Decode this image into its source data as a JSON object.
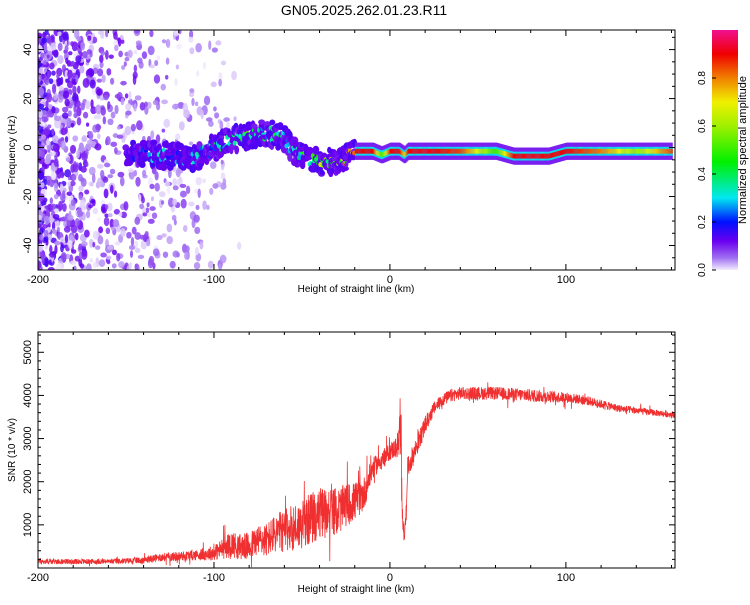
{
  "title": "GN05.2025.262.01.23.R11",
  "chart_data": [
    {
      "type": "heatmap",
      "title": "GN05.2025.262.01.23.R11",
      "xlabel": "Height of straight line (km)",
      "ylabel": "Frequency (Hz)",
      "xlim": [
        -200,
        162
      ],
      "ylim": [
        -50,
        48
      ],
      "xticks": [
        "-200",
        "-100",
        "0",
        "100"
      ],
      "xtick_values": [
        -200,
        -100,
        0,
        100
      ],
      "yticks": [
        "40",
        "20",
        "0",
        "-20",
        "-40"
      ],
      "ytick_values": [
        40,
        20,
        0,
        -20,
        -40
      ],
      "colorbar": {
        "label": "Normalized spectral amplitude",
        "range": [
          0,
          1
        ],
        "ticks": [
          "0.0",
          "0.2",
          "0.4",
          "0.6",
          "0.8"
        ],
        "tick_values": [
          0,
          0.2,
          0.4,
          0.6,
          0.8
        ]
      },
      "ridge": {
        "height": [
          -150,
          -140,
          -130,
          -120,
          -110,
          -100,
          -90,
          -80,
          -70,
          -60,
          -55,
          -50,
          -45,
          -40,
          -35,
          -30,
          -25,
          -20,
          -10,
          -5,
          0,
          5,
          8,
          10,
          20,
          40,
          60,
          70,
          80,
          90,
          100,
          120,
          140,
          160
        ],
        "frequency": [
          -3,
          -3,
          -3,
          -4,
          -4,
          0,
          3,
          5,
          6,
          4,
          -1,
          -3,
          -5,
          -6,
          -6,
          -5,
          -4,
          -1.5,
          -1.5,
          -3,
          -1.5,
          -1.5,
          -3,
          -1.5,
          -1.5,
          -1.5,
          -1.5,
          -3.5,
          -3.5,
          -3.5,
          -1.5,
          -1.5,
          -1.5,
          -1.5
        ],
        "amplitude": [
          0.15,
          0.25,
          0.3,
          0.25,
          0.3,
          0.35,
          0.4,
          0.45,
          0.4,
          0.35,
          0.4,
          0.45,
          0.5,
          0.55,
          0.6,
          0.65,
          0.75,
          0.9,
          0.9,
          0.5,
          0.9,
          0.9,
          0.7,
          0.9,
          0.92,
          0.85,
          0.5,
          0.9,
          0.92,
          0.9,
          0.9,
          0.8,
          0.6,
          0.85
        ]
      },
      "noise_region": {
        "height_range": [
          -200,
          -105
        ],
        "amplitude_max": 0.12
      }
    },
    {
      "type": "line",
      "xlabel": "Height of straight line (km)",
      "ylabel": "SNR (10 * v/v)",
      "xlim": [
        -200,
        162
      ],
      "ylim": [
        0,
        5470
      ],
      "xticks": [
        "-200",
        "-100",
        "0",
        "100"
      ],
      "xtick_values": [
        -200,
        -100,
        0,
        100
      ],
      "yticks": [
        "1000",
        "2000",
        "3000",
        "4000",
        "5000"
      ],
      "ytick_values": [
        1000,
        2000,
        3000,
        4000,
        5000
      ],
      "color": "#f03030",
      "series": [
        {
          "name": "SNR",
          "x": [
            -200,
            -180,
            -160,
            -140,
            -130,
            -120,
            -110,
            -100,
            -95,
            -90,
            -85,
            -80,
            -75,
            -70,
            -65,
            -60,
            -55,
            -50,
            -45,
            -40,
            -35,
            -30,
            -25,
            -20,
            -15,
            -10,
            -5,
            0,
            4,
            6,
            7,
            8,
            9,
            10,
            12,
            15,
            20,
            25,
            30,
            35,
            40,
            60,
            80,
            100,
            110,
            120,
            130,
            140,
            150,
            162
          ],
          "y": [
            150,
            150,
            150,
            180,
            250,
            270,
            300,
            350,
            450,
            550,
            500,
            500,
            650,
            650,
            800,
            850,
            950,
            1000,
            1150,
            1250,
            1350,
            1300,
            1450,
            1550,
            1700,
            2300,
            2500,
            2700,
            2800,
            3000,
            1500,
            700,
            1100,
            2300,
            2500,
            2800,
            3300,
            3700,
            3900,
            4000,
            4050,
            4050,
            4000,
            3950,
            3900,
            3800,
            3700,
            3650,
            3600,
            3550
          ],
          "noise": [
            120,
            120,
            120,
            150,
            200,
            220,
            250,
            350,
            500,
            600,
            600,
            650,
            700,
            800,
            900,
            1000,
            1100,
            1100,
            1200,
            1200,
            1100,
            1100,
            1000,
            900,
            800,
            500,
            400,
            400,
            500,
            1500,
            900,
            300,
            400,
            500,
            500,
            500,
            400,
            300,
            300,
            300,
            300,
            300,
            300,
            250,
            220,
            200,
            180,
            160,
            150,
            150
          ]
        }
      ]
    }
  ]
}
